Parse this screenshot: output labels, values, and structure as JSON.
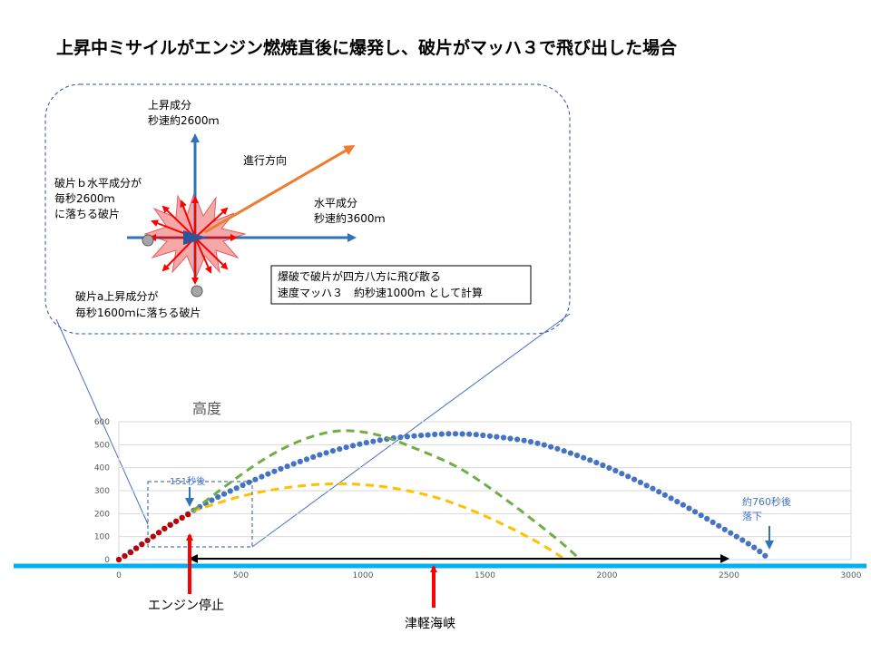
{
  "title": "上昇中ミサイルがエンジン燃焼直後に爆発し、破片がマッハ３で飛び出した場合",
  "inset": {
    "up_component": [
      "上昇成分",
      "秒速約2600ｍ"
    ],
    "direction": "進行方向",
    "horizontal_component": [
      "水平成分",
      "秒速約3600ｍ"
    ],
    "fragment_b": [
      "破片ｂ水平成分が",
      "毎秒2600ｍ",
      "に落ちる破片"
    ],
    "fragment_a": [
      "破片a上昇成分が",
      "毎秒1600ｍに落ちる破片"
    ],
    "note": [
      "爆破で破片が四方八方に飛び散る",
      "速度マッハ３　約秒速1000ｍ として計算"
    ]
  },
  "chart": {
    "title": "高度",
    "annotation_151": "151秒後",
    "annotation_760": [
      "約760秒後",
      "落下"
    ],
    "engine_stop": "エンジン停止",
    "strait": "津軽海峡",
    "colors": {
      "trajectory": "#4472c4",
      "boost": "#c00000",
      "fragment_a": "#ffc000",
      "fragment_b": "#70ad47",
      "arrow_red": "#ff0000",
      "arrow_blue": "#2e75b6",
      "arrow_orange": "#ed7d31",
      "sea": "#00b0f0"
    }
  },
  "chart_data": {
    "type": "scatter",
    "title": "高度",
    "xlim": [
      0,
      3000
    ],
    "ylim": [
      0,
      600
    ],
    "x_ticks": [
      0,
      500,
      1000,
      1500,
      2000,
      2500,
      3000
    ],
    "y_ticks": [
      0,
      100,
      200,
      300,
      400,
      500,
      600
    ],
    "grid": "horizontal",
    "series": [
      {
        "style": "dotted-blue",
        "x": [
          0,
          300,
          500,
          700,
          900,
          1100,
          1300,
          1400,
          1500,
          1700,
          1900,
          2100,
          2300,
          2500,
          2600,
          2650
        ],
        "y": [
          0,
          210,
          320,
          410,
          480,
          525,
          545,
          547,
          540,
          510,
          445,
          355,
          245,
          120,
          55,
          15
        ]
      },
      {
        "style": "dotted-red",
        "x": [
          0,
          40,
          80,
          120,
          160,
          200,
          240,
          290
        ],
        "y": [
          0,
          25,
          55,
          85,
          115,
          145,
          170,
          200
        ]
      },
      {
        "style": "dashed-yellow",
        "x": [
          300,
          500,
          700,
          900,
          1100,
          1300,
          1500,
          1700,
          1830
        ],
        "y": [
          210,
          275,
          315,
          330,
          315,
          270,
          190,
          85,
          0
        ]
      },
      {
        "style": "dashed-green",
        "x": [
          300,
          450,
          600,
          750,
          900,
          1050,
          1200,
          1400,
          1600,
          1800,
          1890
        ],
        "y": [
          210,
          330,
          440,
          520,
          560,
          545,
          490,
          395,
          250,
          85,
          0
        ]
      }
    ]
  }
}
